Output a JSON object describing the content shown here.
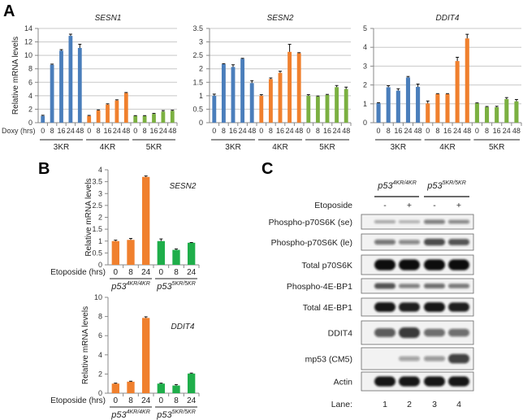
{
  "panels": {
    "a": "A",
    "b": "B",
    "c": "C"
  },
  "colors": {
    "blue": "#4a7ebb",
    "orange": "#f0802e",
    "green_a": "#7bb041",
    "green_b": "#1fae4a",
    "grid": "#c8c8c8"
  },
  "chart_data": [
    {
      "type": "bar",
      "panel": "A",
      "title": "SESN1",
      "ylabel": "Relative mRNA levels",
      "xlabel": "Doxy (hrs)",
      "ylim": [
        0,
        14
      ],
      "ystep": 2,
      "grid": true,
      "categories": [
        "0",
        "8",
        "16",
        "24",
        "48"
      ],
      "groups": [
        "3KR",
        "4KR",
        "5KR"
      ],
      "series": [
        {
          "name": "3KR",
          "color": "blue",
          "values": [
            1.0,
            8.6,
            10.7,
            12.9,
            11.1
          ],
          "errors": [
            0.1,
            0.1,
            0.15,
            0.25,
            0.55
          ]
        },
        {
          "name": "4KR",
          "color": "orange",
          "values": [
            1.0,
            1.8,
            2.7,
            3.3,
            4.4
          ],
          "errors": [
            0.08,
            0.1,
            0.1,
            0.1,
            0.08
          ]
        },
        {
          "name": "5KR",
          "color": "green_a",
          "values": [
            1.0,
            1.0,
            1.3,
            1.65,
            1.75
          ],
          "errors": [
            0.05,
            0.05,
            0.08,
            0.15,
            0.1
          ]
        }
      ]
    },
    {
      "type": "bar",
      "panel": "A",
      "title": "SESN2",
      "ylabel": "",
      "xlabel": "",
      "ylim": [
        0,
        3.5
      ],
      "ystep": 0.5,
      "grid": true,
      "categories": [
        "0",
        "8",
        "16",
        "24",
        "48"
      ],
      "groups": [
        "3KR",
        "4KR",
        "5KR"
      ],
      "series": [
        {
          "name": "3KR",
          "color": "blue",
          "values": [
            1.0,
            2.17,
            2.07,
            2.37,
            1.47
          ],
          "errors": [
            0.06,
            0.02,
            0.08,
            0.02,
            0.09
          ]
        },
        {
          "name": "4KR",
          "color": "orange",
          "values": [
            1.0,
            1.62,
            1.85,
            2.63,
            2.58
          ],
          "errors": [
            0.04,
            0.04,
            0.06,
            0.28,
            0.02
          ]
        },
        {
          "name": "5KR",
          "color": "green_a",
          "values": [
            1.0,
            0.97,
            1.03,
            1.32,
            1.25
          ],
          "errors": [
            0.04,
            0.02,
            0.02,
            0.06,
            0.07
          ]
        }
      ]
    },
    {
      "type": "bar",
      "panel": "A",
      "title": "DDIT4",
      "ylabel": "",
      "xlabel": "",
      "ylim": [
        0,
        5
      ],
      "ystep": 1,
      "grid": true,
      "categories": [
        "0",
        "8",
        "16",
        "24",
        "48"
      ],
      "groups": [
        "3KR",
        "4KR",
        "5KR"
      ],
      "series": [
        {
          "name": "3KR",
          "color": "blue",
          "values": [
            1.03,
            1.88,
            1.7,
            2.4,
            1.9
          ],
          "errors": [
            0.03,
            0.08,
            0.1,
            0.05,
            0.15
          ]
        },
        {
          "name": "4KR",
          "color": "orange",
          "values": [
            1.02,
            1.52,
            1.52,
            3.27,
            4.47
          ],
          "errors": [
            0.13,
            0.02,
            0.02,
            0.2,
            0.22
          ]
        },
        {
          "name": "5KR",
          "color": "green_a",
          "values": [
            1.03,
            0.83,
            0.82,
            1.25,
            1.13
          ],
          "errors": [
            0.02,
            0.03,
            0.05,
            0.08,
            0.1
          ]
        }
      ]
    },
    {
      "type": "bar",
      "panel": "B",
      "title": "SESN2",
      "ylabel": "Relative mRNA levels",
      "xlabel": "Etoposide (hrs)",
      "ylim": [
        0,
        4
      ],
      "ystep": 0.5,
      "grid": false,
      "categories": [
        "0",
        "8",
        "24"
      ],
      "groups": [
        {
          "base": "p53",
          "sup": "4KR/4KR"
        },
        {
          "base": "p53",
          "sup": "5KR/5KR"
        }
      ],
      "series": [
        {
          "name": "p53 4KR/4KR",
          "color": "orange",
          "values": [
            1.0,
            1.05,
            3.7
          ],
          "errors": [
            0.04,
            0.06,
            0.04
          ]
        },
        {
          "name": "p53 5KR/5KR",
          "color": "green_b",
          "values": [
            1.0,
            0.63,
            0.93
          ],
          "errors": [
            0.09,
            0.04,
            0.01
          ]
        }
      ]
    },
    {
      "type": "bar",
      "panel": "B",
      "title": "DDIT4",
      "ylabel": "Relative mRNA levels",
      "xlabel": "Etoposide (hrs)",
      "ylim": [
        0,
        10
      ],
      "ystep": 2,
      "grid": false,
      "categories": [
        "0",
        "8",
        "24"
      ],
      "groups": [
        {
          "base": "p53",
          "sup": "4KR/4KR"
        },
        {
          "base": "p53",
          "sup": "5KR/5KR"
        }
      ],
      "series": [
        {
          "name": "p53 4KR/4KR",
          "color": "orange",
          "values": [
            1.0,
            1.2,
            7.85
          ],
          "errors": [
            0.05,
            0.05,
            0.12
          ]
        },
        {
          "name": "p53 5KR/5KR",
          "color": "green_b",
          "values": [
            1.0,
            0.8,
            2.05
          ],
          "errors": [
            0.05,
            0.1,
            0.05
          ]
        }
      ]
    }
  ],
  "blot": {
    "genotypes": [
      {
        "base": "p53",
        "sup": "4KR/4KR"
      },
      {
        "base": "p53",
        "sup": "5KR/5KR"
      }
    ],
    "treatment_label": "Etoposide",
    "treatment": [
      "-",
      "+",
      "-",
      "+"
    ],
    "rows": [
      {
        "label": "Phospho-p70S6K  (se)",
        "intensity": [
          0.15,
          0.1,
          0.35,
          0.3
        ]
      },
      {
        "label": "Phospho-p70S6K  (le)",
        "intensity": [
          0.4,
          0.3,
          0.65,
          0.6
        ]
      },
      {
        "label": "Total p70S6K",
        "intensity": [
          1,
          1,
          1,
          1
        ]
      },
      {
        "label": "Phospho-4E-BP1",
        "intensity": [
          0.6,
          0.35,
          0.45,
          0.4
        ]
      },
      {
        "label": "Total 4E-BP1",
        "intensity": [
          0.95,
          0.9,
          0.95,
          0.9
        ]
      },
      {
        "label": "DDIT4",
        "intensity": [
          0.55,
          0.75,
          0.45,
          0.45
        ]
      },
      {
        "label": "mp53 (CM5)",
        "intensity": [
          0.0,
          0.15,
          0.2,
          0.7
        ]
      },
      {
        "label": "Actin",
        "intensity": [
          0.95,
          0.95,
          0.95,
          0.95
        ]
      }
    ],
    "lane_label": "Lane:",
    "lanes": [
      "1",
      "2",
      "3",
      "4"
    ]
  }
}
